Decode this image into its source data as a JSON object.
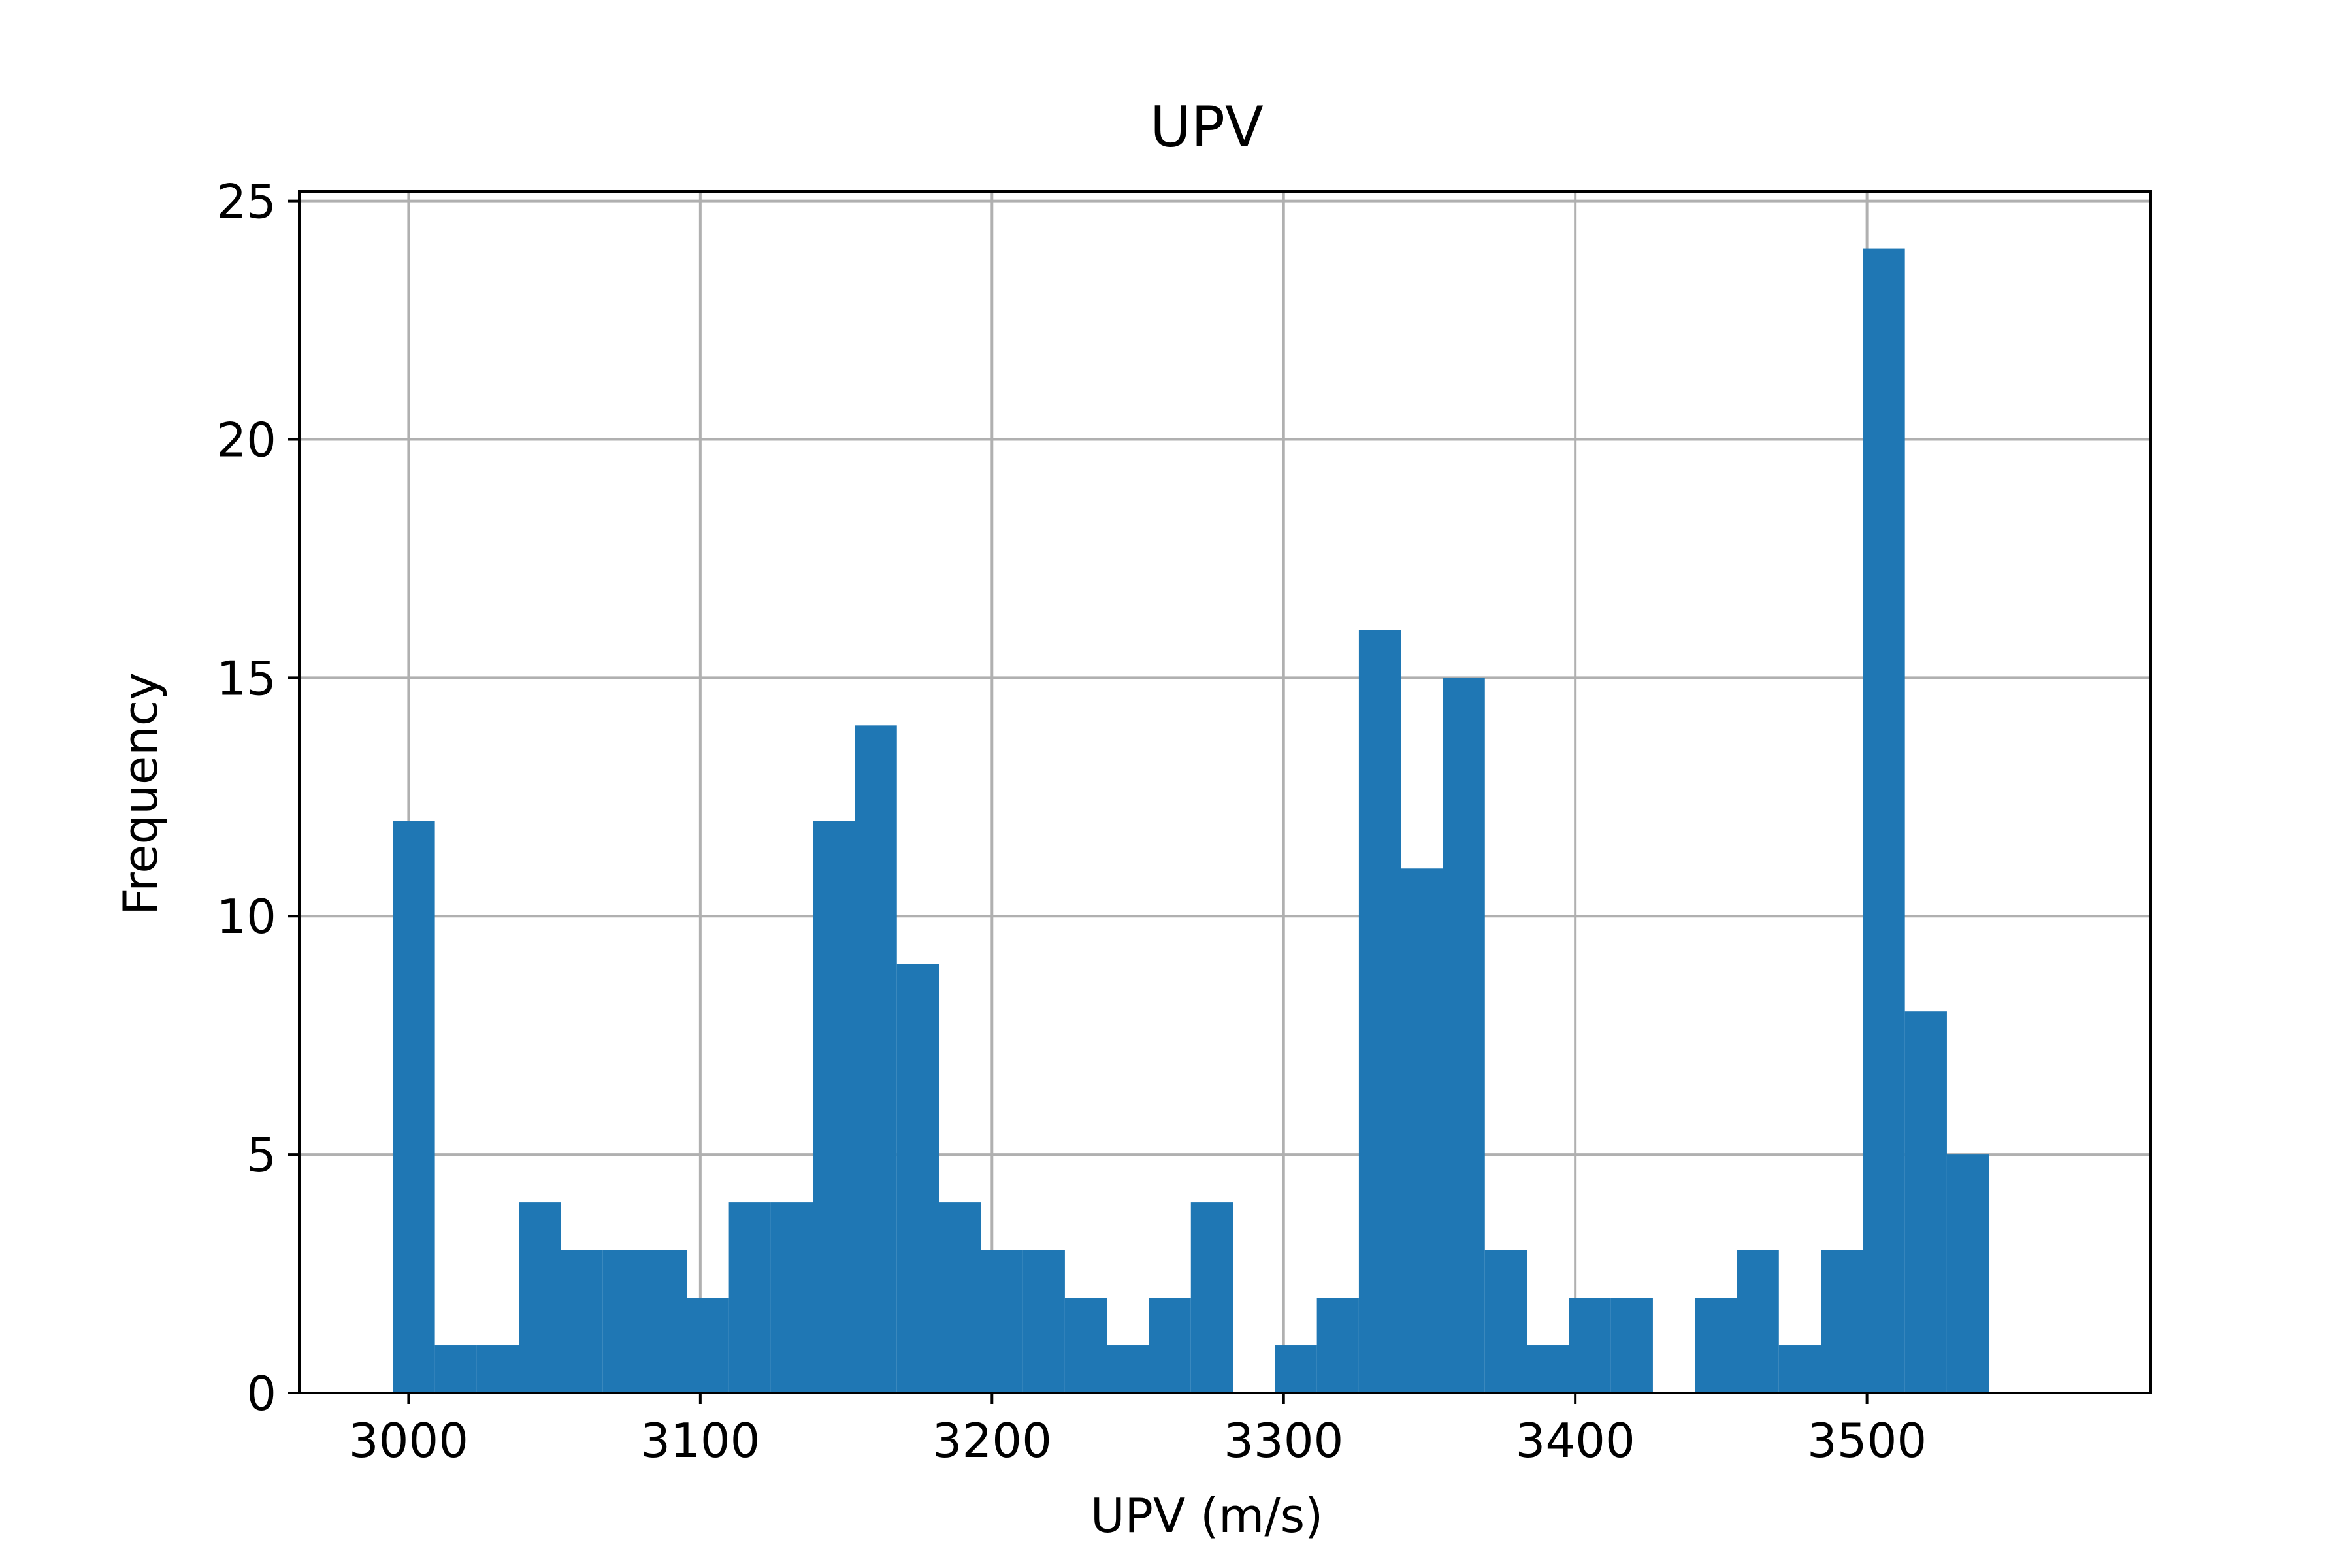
{
  "chart_data": {
    "type": "bar",
    "title": "UPV",
    "xlabel": "UPV (m/s)",
    "ylabel": "Frequency",
    "xlim": [
      2962.5,
      3597.3
    ],
    "ylim": [
      0,
      25.2
    ],
    "xticks": [
      3000,
      3100,
      3200,
      3300,
      3400,
      3500
    ],
    "yticks": [
      0,
      5,
      10,
      15,
      20,
      25
    ],
    "grid": true,
    "bar_color": "#1f77b4",
    "grid_color": "#b0b0b0",
    "bin_start": 2994.6,
    "bin_width": 14.4,
    "counts": [
      12,
      1,
      1,
      4,
      3,
      3,
      3,
      2,
      4,
      4,
      12,
      14,
      9,
      4,
      3,
      3,
      2,
      1,
      2,
      4,
      0,
      1,
      2,
      16,
      11,
      15,
      3,
      1,
      2,
      2,
      0,
      2,
      3,
      1,
      3,
      24,
      8,
      5
    ]
  }
}
